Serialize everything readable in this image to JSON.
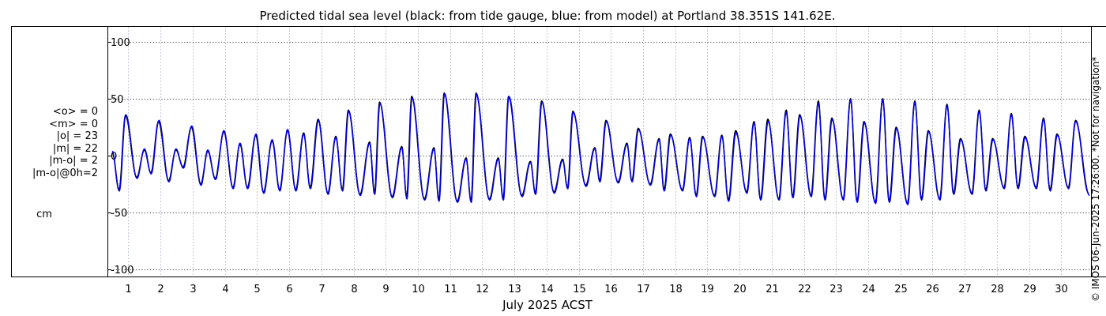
{
  "chart_data": {
    "type": "line",
    "title": "Predicted tidal sea level (black: from tide gauge, blue: from model) at Portland 38.351S 141.62E.",
    "xlabel": "July 2025 ACST",
    "ylabel": "",
    "xlim": [
      0.35,
      30.95
    ],
    "ylim": [
      -106,
      113
    ],
    "yticks": [
      "100",
      "50",
      "0",
      "-50",
      "-100"
    ],
    "ytick_values": [
      100,
      50,
      0,
      -50,
      -100
    ],
    "xticks": [
      "1",
      "2",
      "3",
      "4",
      "5",
      "6",
      "7",
      "8",
      "9",
      "10",
      "11",
      "12",
      "13",
      "14",
      "15",
      "16",
      "17",
      "18",
      "19",
      "20",
      "21",
      "22",
      "23",
      "24",
      "25",
      "26",
      "27",
      "28",
      "29",
      "30"
    ],
    "xtick_values": [
      1,
      2,
      3,
      4,
      5,
      6,
      7,
      8,
      9,
      10,
      11,
      12,
      13,
      14,
      15,
      16,
      17,
      18,
      19,
      20,
      21,
      22,
      23,
      24,
      25,
      26,
      27,
      28,
      29,
      30
    ],
    "grid": true,
    "series": [
      {
        "name": "tide gauge",
        "color": "#000000",
        "highs": [
          [
            0.5,
            3
          ],
          [
            0.91,
            35
          ],
          [
            1.5,
            5
          ],
          [
            1.94,
            30
          ],
          [
            2.48,
            5
          ],
          [
            2.96,
            25
          ],
          [
            3.47,
            4
          ],
          [
            3.97,
            21
          ],
          [
            4.47,
            10
          ],
          [
            4.96,
            18
          ],
          [
            5.47,
            13
          ],
          [
            5.95,
            22
          ],
          [
            6.45,
            20
          ],
          [
            6.9,
            32
          ],
          [
            7.45,
            17
          ],
          [
            7.84,
            40
          ],
          [
            8.5,
            12
          ],
          [
            8.81,
            47
          ],
          [
            9.5,
            8
          ],
          [
            9.81,
            52
          ],
          [
            10.5,
            7
          ],
          [
            10.82,
            55
          ],
          [
            11.5,
            -2
          ],
          [
            11.81,
            55
          ],
          [
            12.5,
            -2
          ],
          [
            12.82,
            52
          ],
          [
            13.5,
            -5
          ],
          [
            13.85,
            48
          ],
          [
            14.5,
            -3
          ],
          [
            14.82,
            39
          ],
          [
            15.5,
            7
          ],
          [
            15.85,
            31
          ],
          [
            16.5,
            11
          ],
          [
            16.85,
            24
          ],
          [
            17.5,
            15
          ],
          [
            17.85,
            19
          ],
          [
            18.45,
            16
          ],
          [
            18.85,
            17
          ],
          [
            19.45,
            18
          ],
          [
            19.88,
            22
          ],
          [
            20.45,
            30
          ],
          [
            20.88,
            32
          ],
          [
            21.45,
            40
          ],
          [
            21.87,
            36
          ],
          [
            22.45,
            48
          ],
          [
            22.87,
            33
          ],
          [
            23.45,
            50
          ],
          [
            23.87,
            30
          ],
          [
            24.45,
            50
          ],
          [
            24.87,
            25
          ],
          [
            25.45,
            48
          ],
          [
            25.87,
            22
          ],
          [
            26.45,
            45
          ],
          [
            26.87,
            15
          ],
          [
            27.45,
            40
          ],
          [
            27.87,
            15
          ],
          [
            28.45,
            37
          ],
          [
            28.87,
            17
          ],
          [
            29.45,
            33
          ],
          [
            29.87,
            19
          ],
          [
            30.45,
            31
          ]
        ],
        "lows": [
          [
            0.71,
            -30
          ],
          [
            1.26,
            -19
          ],
          [
            1.7,
            -15
          ],
          [
            2.25,
            -22
          ],
          [
            2.7,
            -10
          ],
          [
            3.25,
            -25
          ],
          [
            3.7,
            -20
          ],
          [
            4.25,
            -28
          ],
          [
            4.7,
            -28
          ],
          [
            5.2,
            -32
          ],
          [
            5.7,
            -30
          ],
          [
            6.2,
            -30
          ],
          [
            6.65,
            -28
          ],
          [
            7.2,
            -33
          ],
          [
            7.65,
            -30
          ],
          [
            8.2,
            -34
          ],
          [
            8.65,
            -33
          ],
          [
            9.2,
            -36
          ],
          [
            9.65,
            -36
          ],
          [
            10.2,
            -38
          ],
          [
            10.65,
            -39
          ],
          [
            11.22,
            -40
          ],
          [
            11.65,
            -40
          ],
          [
            12.22,
            -38
          ],
          [
            12.65,
            -38
          ],
          [
            13.23,
            -35
          ],
          [
            13.65,
            -33
          ],
          [
            14.23,
            -32
          ],
          [
            14.65,
            -28
          ],
          [
            15.22,
            -26
          ],
          [
            15.65,
            -22
          ],
          [
            16.22,
            -23
          ],
          [
            16.65,
            -22
          ],
          [
            17.22,
            -25
          ],
          [
            17.65,
            -30
          ],
          [
            18.22,
            -30
          ],
          [
            18.65,
            -35
          ],
          [
            19.22,
            -35
          ],
          [
            19.65,
            -39
          ],
          [
            20.22,
            -32
          ],
          [
            20.65,
            -38
          ],
          [
            21.22,
            -38
          ],
          [
            21.65,
            -36
          ],
          [
            22.22,
            -35
          ],
          [
            22.65,
            -38
          ],
          [
            23.22,
            -38
          ],
          [
            23.65,
            -40
          ],
          [
            24.22,
            -41
          ],
          [
            24.65,
            -40
          ],
          [
            25.22,
            -42
          ],
          [
            25.65,
            -38
          ],
          [
            26.22,
            -38
          ],
          [
            26.65,
            -33
          ],
          [
            27.22,
            -33
          ],
          [
            27.65,
            -30
          ],
          [
            28.22,
            -28
          ],
          [
            28.65,
            -28
          ],
          [
            29.22,
            -28
          ],
          [
            29.65,
            -30
          ],
          [
            30.22,
            -28
          ],
          [
            30.85,
            -33
          ]
        ]
      },
      {
        "name": "model",
        "color": "#0000e6",
        "highs": [
          [
            0.5,
            4
          ],
          [
            0.92,
            36
          ],
          [
            1.5,
            6
          ],
          [
            1.95,
            31
          ],
          [
            2.48,
            6
          ],
          [
            2.97,
            26
          ],
          [
            3.47,
            5
          ],
          [
            3.97,
            22
          ],
          [
            4.47,
            11
          ],
          [
            4.97,
            19
          ],
          [
            5.47,
            14
          ],
          [
            5.95,
            23
          ],
          [
            6.45,
            19
          ],
          [
            6.91,
            31
          ],
          [
            7.45,
            16
          ],
          [
            7.85,
            39
          ],
          [
            8.5,
            11
          ],
          [
            8.82,
            46
          ],
          [
            9.5,
            7
          ],
          [
            9.82,
            51
          ],
          [
            10.5,
            6
          ],
          [
            10.83,
            54
          ],
          [
            11.5,
            -3
          ],
          [
            11.82,
            54
          ],
          [
            12.5,
            -3
          ],
          [
            12.83,
            52
          ],
          [
            13.5,
            -6
          ],
          [
            13.86,
            47
          ],
          [
            14.5,
            -4
          ],
          [
            14.83,
            38
          ],
          [
            15.5,
            6
          ],
          [
            15.86,
            30
          ],
          [
            16.5,
            10
          ],
          [
            16.86,
            23
          ],
          [
            17.5,
            14
          ],
          [
            17.86,
            18
          ],
          [
            18.45,
            15
          ],
          [
            18.86,
            16
          ],
          [
            19.45,
            17
          ],
          [
            19.89,
            20
          ],
          [
            20.45,
            29
          ],
          [
            20.89,
            30
          ],
          [
            21.45,
            38
          ],
          [
            21.88,
            35
          ],
          [
            22.45,
            46
          ],
          [
            22.88,
            32
          ],
          [
            23.45,
            49
          ],
          [
            23.88,
            29
          ],
          [
            24.45,
            49
          ],
          [
            24.88,
            24
          ],
          [
            25.45,
            47
          ],
          [
            25.88,
            21
          ],
          [
            26.45,
            44
          ],
          [
            26.88,
            14
          ],
          [
            27.45,
            39
          ],
          [
            27.88,
            14
          ],
          [
            28.45,
            36
          ],
          [
            28.88,
            16
          ],
          [
            29.45,
            32
          ],
          [
            29.88,
            18
          ],
          [
            30.45,
            30
          ]
        ],
        "lows": [
          [
            0.72,
            -31
          ],
          [
            1.27,
            -20
          ],
          [
            1.71,
            -16
          ],
          [
            2.26,
            -23
          ],
          [
            2.71,
            -11
          ],
          [
            3.26,
            -26
          ],
          [
            3.71,
            -21
          ],
          [
            4.26,
            -29
          ],
          [
            4.71,
            -29
          ],
          [
            5.21,
            -33
          ],
          [
            5.71,
            -31
          ],
          [
            6.21,
            -31
          ],
          [
            6.66,
            -29
          ],
          [
            7.21,
            -34
          ],
          [
            7.66,
            -31
          ],
          [
            8.21,
            -35
          ],
          [
            8.66,
            -34
          ],
          [
            9.21,
            -37
          ],
          [
            9.66,
            -38
          ],
          [
            10.21,
            -39
          ],
          [
            10.66,
            -40
          ],
          [
            11.23,
            -41
          ],
          [
            11.66,
            -41
          ],
          [
            12.23,
            -39
          ],
          [
            12.66,
            -39
          ],
          [
            13.24,
            -36
          ],
          [
            13.66,
            -34
          ],
          [
            14.24,
            -33
          ],
          [
            14.66,
            -29
          ],
          [
            15.23,
            -27
          ],
          [
            15.66,
            -23
          ],
          [
            16.23,
            -24
          ],
          [
            16.66,
            -23
          ],
          [
            17.23,
            -26
          ],
          [
            17.66,
            -31
          ],
          [
            18.23,
            -31
          ],
          [
            18.66,
            -36
          ],
          [
            19.23,
            -36
          ],
          [
            19.66,
            -40
          ],
          [
            20.23,
            -33
          ],
          [
            20.66,
            -39
          ],
          [
            21.23,
            -39
          ],
          [
            21.66,
            -37
          ],
          [
            22.23,
            -36
          ],
          [
            22.66,
            -39
          ],
          [
            23.23,
            -39
          ],
          [
            23.66,
            -41
          ],
          [
            24.23,
            -42
          ],
          [
            24.66,
            -41
          ],
          [
            25.23,
            -43
          ],
          [
            25.66,
            -39
          ],
          [
            26.23,
            -39
          ],
          [
            26.66,
            -34
          ],
          [
            27.23,
            -34
          ],
          [
            27.66,
            -31
          ],
          [
            28.23,
            -29
          ],
          [
            28.66,
            -29
          ],
          [
            29.23,
            -29
          ],
          [
            29.66,
            -31
          ],
          [
            30.23,
            -29
          ],
          [
            30.88,
            -35
          ]
        ]
      }
    ]
  },
  "stats": {
    "lines": [
      "<o> = 0",
      "<m> = 0",
      "|o| = 23",
      "|m| = 22",
      "|m-o| = 2",
      "|m-o|@0h=2"
    ],
    "unit": "cm"
  },
  "credit": "© IMOS 06-Jun-2025 17:26:00. *Not for navigation*"
}
